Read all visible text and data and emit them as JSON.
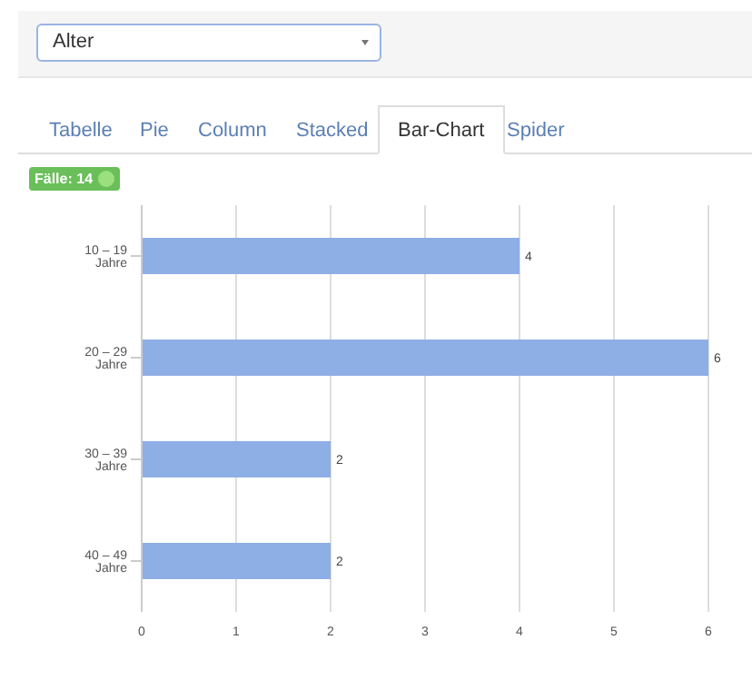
{
  "chart_data": {
    "type": "bar",
    "orientation": "horizontal",
    "categories": [
      "10 – 19 Jahre",
      "20 – 29 Jahre",
      "30 – 39 Jahre",
      "40 – 49 Jahre"
    ],
    "values": [
      4,
      6,
      2,
      2
    ],
    "color": "#8eaee6",
    "xlim": [
      0,
      6
    ],
    "xticks": [
      0,
      1,
      2,
      3,
      4,
      5,
      6
    ],
    "grid": "x",
    "data_labels": true,
    "legend": false,
    "annotations": [
      "Alter",
      "Tabelle",
      "Pie",
      "Column",
      "Stacked",
      "Bar-Chart",
      "Spider",
      "Fälle: 14"
    ]
  }
}
